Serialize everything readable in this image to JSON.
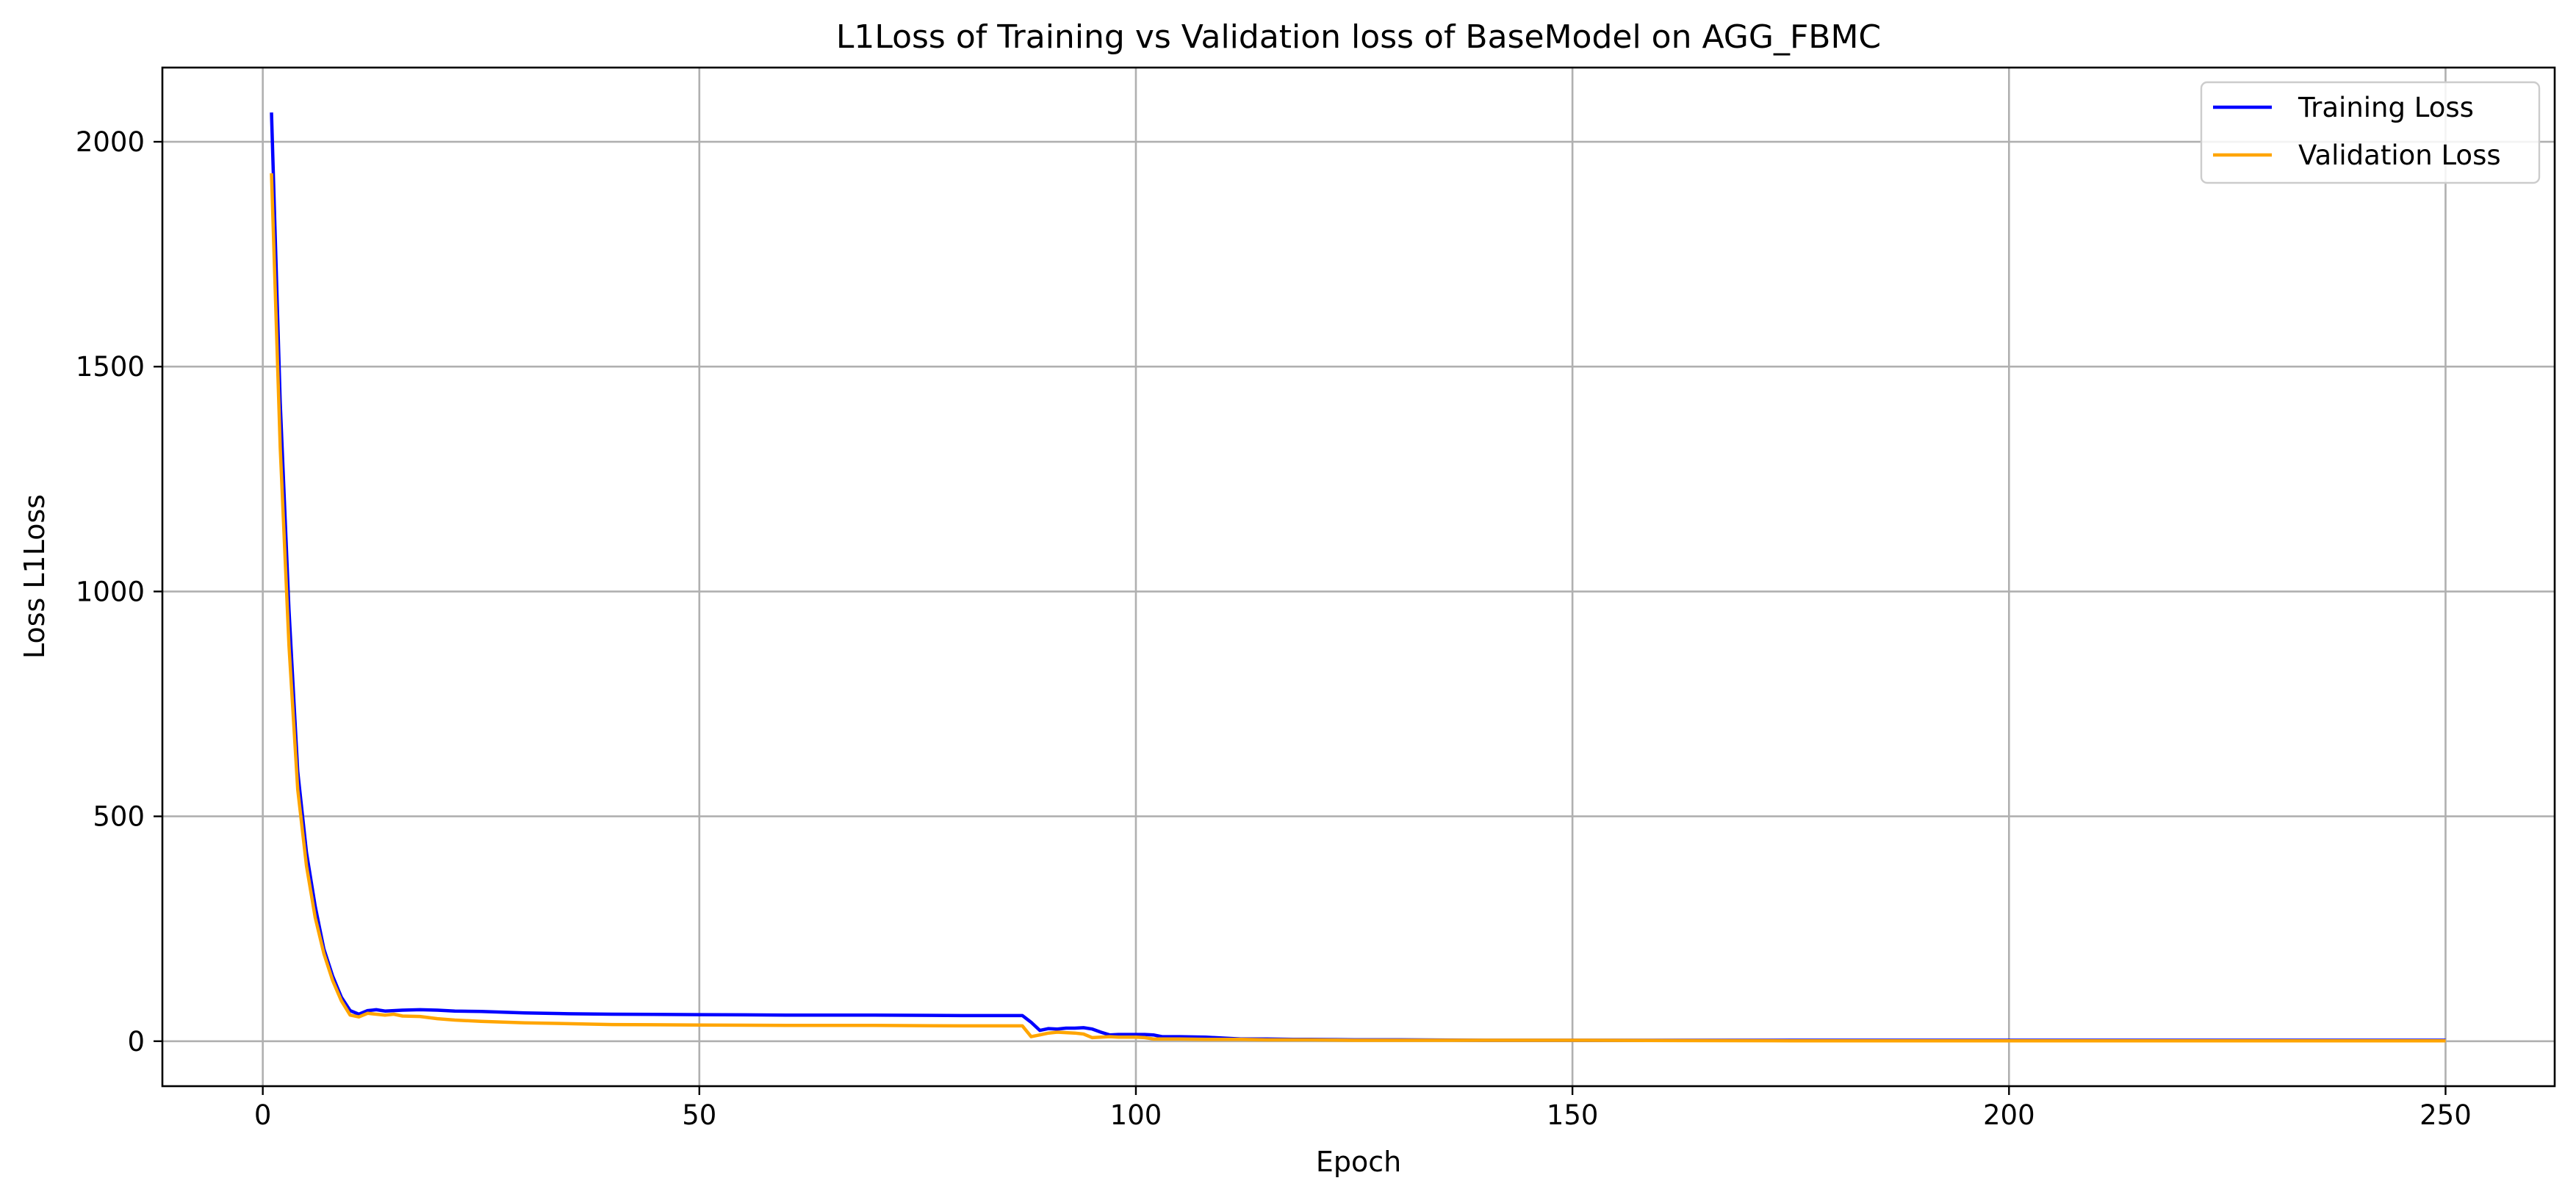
{
  "chart_data": {
    "type": "line",
    "title": "L1Loss of Training vs Validation loss of BaseModel on AGG_FBMC",
    "xlabel": "Epoch",
    "ylabel": "Loss L1Loss",
    "xlim": [
      -11.5,
      262.5
    ],
    "ylim": [
      -100,
      2165
    ],
    "xticks": [
      0,
      50,
      100,
      150,
      200,
      250
    ],
    "yticks": [
      0,
      500,
      1000,
      1500,
      2000
    ],
    "grid": true,
    "legend": "top-right",
    "series": [
      {
        "name": "Training Loss",
        "color": "#0000ff",
        "x": [
          1,
          2,
          3,
          4,
          5,
          6,
          7,
          8,
          9,
          10,
          11,
          12,
          13,
          14,
          15,
          16,
          18,
          20,
          22,
          25,
          30,
          35,
          40,
          50,
          60,
          70,
          80,
          87,
          88,
          89,
          90,
          91,
          92,
          93,
          94,
          95,
          96,
          97,
          98,
          99,
          100,
          101,
          102,
          103,
          104,
          105,
          108,
          110,
          112,
          115,
          118,
          120,
          125,
          130,
          140,
          150,
          175,
          200,
          225,
          250
        ],
        "y": [
          2065,
          1420,
          960,
          600,
          420,
          300,
          205,
          145,
          98,
          68,
          60,
          68,
          70,
          67,
          68,
          69,
          70,
          69,
          67,
          66,
          63,
          61,
          60,
          59,
          58,
          58,
          57,
          57,
          42,
          24,
          28,
          27,
          29,
          29,
          30,
          27,
          20,
          14,
          15,
          15,
          15,
          15,
          14,
          10,
          10,
          10,
          9,
          7,
          5,
          5,
          4,
          4,
          3,
          3,
          2,
          2,
          2,
          2,
          2,
          2
        ]
      },
      {
        "name": "Validation Loss",
        "color": "#ffa500",
        "x": [
          1,
          2,
          3,
          4,
          5,
          6,
          7,
          8,
          9,
          10,
          11,
          12,
          13,
          14,
          15,
          16,
          18,
          20,
          22,
          25,
          30,
          35,
          40,
          50,
          60,
          70,
          80,
          87,
          88,
          89,
          90,
          91,
          92,
          93,
          94,
          95,
          96,
          97,
          98,
          99,
          100,
          101,
          102,
          103,
          104,
          105,
          108,
          110,
          112,
          115,
          118,
          120,
          125,
          130,
          140,
          150,
          175,
          200,
          225,
          250
        ],
        "y": [
          1930,
          1320,
          880,
          560,
          390,
          275,
          195,
          135,
          90,
          58,
          54,
          62,
          60,
          58,
          60,
          56,
          55,
          50,
          47,
          44,
          41,
          39,
          37,
          36,
          35,
          35,
          34,
          34,
          10,
          14,
          18,
          20,
          19,
          18,
          16,
          8,
          9,
          10,
          9,
          9,
          9,
          8,
          5,
          5,
          5,
          5,
          4,
          4,
          4,
          3,
          3,
          3,
          2,
          2,
          2,
          2,
          1,
          1,
          1,
          1
        ]
      }
    ]
  }
}
